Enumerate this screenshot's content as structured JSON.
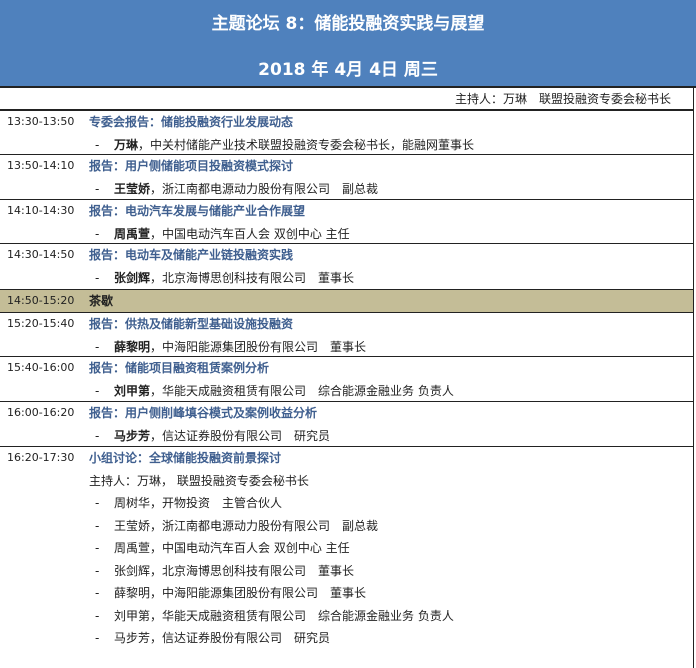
{
  "header": {
    "title": "主题论坛 8：储能投融资实践与展望",
    "date": "2018 年 4月 4日 周三",
    "bg_color": "#4f81bd"
  },
  "host": "主持人：万琳　联盟投融资专委会秘书长",
  "sessions": [
    {
      "time": "13:30-13:50",
      "title": "专委会报告：储能投融资行业发展动态",
      "name": "万琳",
      "desc": "，中关村储能产业技术联盟投融资专委会秘书长，能融网董事长"
    },
    {
      "time": "13:50-14:10",
      "title": "报告：用户侧储能项目投融资模式探讨",
      "name": "王莹娇",
      "desc": "，浙江南都电源动力股份有限公司　副总裁"
    },
    {
      "time": "14:10-14:30",
      "title": "报告：电动汽车发展与储能产业合作展望",
      "name": "周禹萱",
      "desc": "，中国电动汽车百人会 双创中心 主任"
    },
    {
      "time": "14:30-14:50",
      "title": "报告：电动车及储能产业链投融资实践",
      "name": "张剑辉",
      "desc": "，北京海博思创科技有限公司　董事长"
    },
    {
      "time": "14:50-15:20",
      "title": "茶歇",
      "break": true,
      "band_color": "#c4bd97"
    },
    {
      "time": "15:20-15:40",
      "title": "报告：供热及储能新型基础设施投融资",
      "name": "薛黎明",
      "desc": "，中海阳能源集团股份有限公司　董事长"
    },
    {
      "time": "15:40-16:00",
      "title": "报告：储能项目融资租赁案例分析",
      "name": "刘甲第",
      "desc": "，华能天成融资租赁有限公司　综合能源金融业务 负责人"
    },
    {
      "time": "16:00-16:20",
      "title": "报告：用户侧削峰填谷模式及案例收益分析",
      "name": "马步芳",
      "desc": "，信达证券股份有限公司　研究员"
    }
  ],
  "panel": {
    "time": "16:20-17:30",
    "title": "小组讨论：全球储能投融资前景探讨",
    "moderator": "主持人：万琳， 联盟投融资专委会秘书长",
    "dash": "-",
    "members": [
      "周树华，开物投资　主管合伙人",
      "王莹娇，浙江南都电源动力股份有限公司　副总裁",
      "周禹萱，中国电动汽车百人会 双创中心 主任",
      "张剑辉，北京海博思创科技有限公司　董事长",
      "薛黎明，中海阳能源集团股份有限公司　董事长",
      "刘甲第，华能天成融资租赁有限公司　综合能源金融业务 负责人",
      "马步芳，信达证券股份有限公司　研究员"
    ]
  }
}
